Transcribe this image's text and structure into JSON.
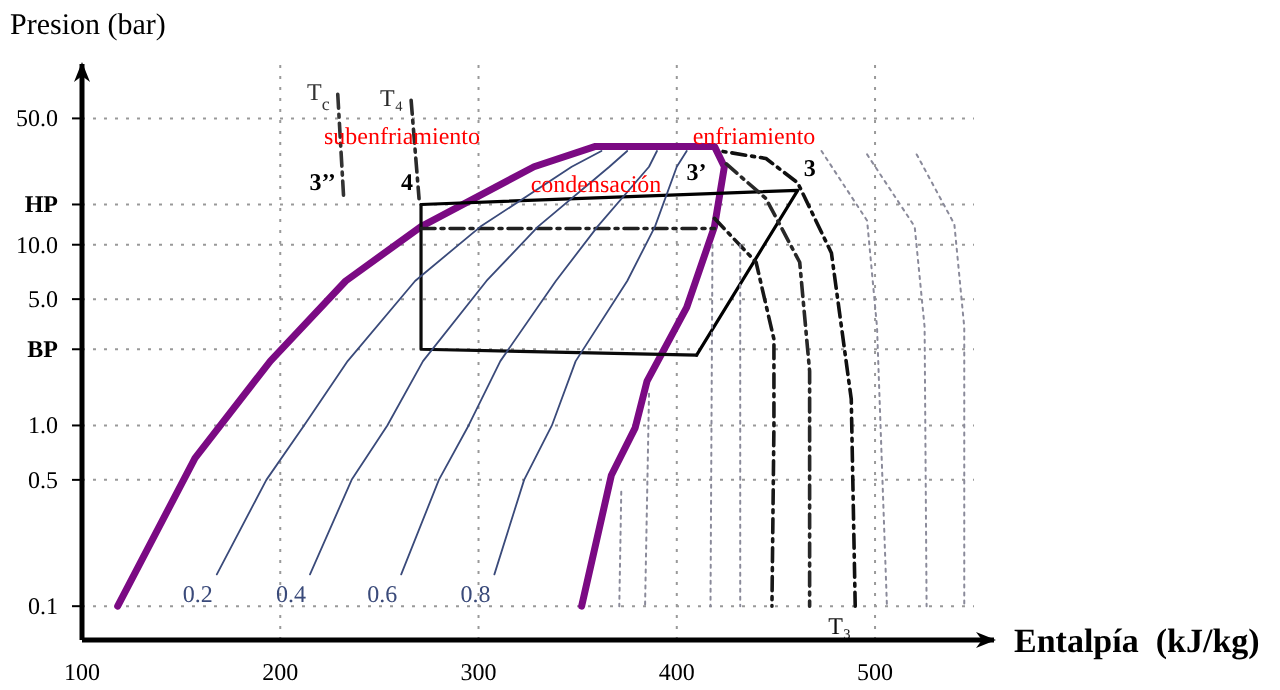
{
  "chart_data": {
    "type": "line",
    "xlabel": "Entalpía  (kJ/kg)",
    "ylabel": "Presion (bar)",
    "xlim": [
      100,
      560
    ],
    "xticks": [
      100,
      200,
      300,
      400,
      500
    ],
    "ylim": [
      0.065,
      100
    ],
    "yticks": [
      {
        "value": 50,
        "label": "50.0"
      },
      {
        "value": 16.7,
        "label": "HP"
      },
      {
        "value": 10,
        "label": "10.0"
      },
      {
        "value": 5,
        "label": "5.0"
      },
      {
        "value": 2.64,
        "label": "BP"
      },
      {
        "value": 1,
        "label": "1.0"
      },
      {
        "value": 0.5,
        "label": "0.5"
      },
      {
        "value": 0.1,
        "label": "0.1"
      }
    ],
    "log": "y",
    "grid": true,
    "series": [
      {
        "color": "#7b0a83",
        "x": [
          118,
          157,
          195,
          233,
          271,
          328,
          359,
          419,
          424,
          419,
          405,
          385,
          379,
          367,
          352
        ],
        "values": [
          0.1,
          0.66,
          2.27,
          6.3,
          12.6,
          27,
          35,
          35,
          27,
          12.6,
          4.5,
          1.76,
          0.97,
          0.53,
          0.1
        ]
      },
      {
        "color": "#000000",
        "x": [
          271,
          461,
          410
        ],
        "values": [
          16.7,
          20,
          2.45
        ]
      },
      {
        "color": "#0a0a0a",
        "x": [
          410,
          271,
          271
        ],
        "values": [
          2.45,
          2.64,
          16.7
        ]
      },
      {
        "color": "#202020",
        "line_style": "dashed",
        "x": [
          271,
          419
        ],
        "values": [
          12.3,
          12.3
        ]
      },
      {
        "name": "T₄",
        "color": "#2a2a2a",
        "line_style": "dashed",
        "x": [
          266,
          270
        ],
        "values": [
          63,
          18
        ]
      },
      {
        "name": "T$_{c}$",
        "color": "#333333",
        "line_style": "dashed",
        "x": [
          229,
          232
        ],
        "values": [
          68,
          18
        ]
      },
      {
        "name": "T₃",
        "color": "#101010",
        "line_style": "dashed",
        "x": [
          490,
          488,
          478,
          461,
          445,
          422
        ],
        "values": [
          0.1,
          1.4,
          9,
          22,
          30,
          33
        ]
      },
      {
        "color": "#181818",
        "line_style": "dashed",
        "x": [
          419,
          440,
          449,
          449,
          448
        ],
        "values": [
          14,
          8,
          3,
          1,
          0.1
        ]
      },
      {
        "color": "#282828",
        "line_style": "dashed",
        "x": [
          425,
          445,
          462,
          467,
          467
        ],
        "values": [
          28,
          18,
          8,
          2,
          0.1
        ]
      },
      {
        "name": "0.2",
        "color": "#3a4a7a",
        "x": [
          168,
          193,
          212,
          234,
          268,
          301,
          347,
          362
        ],
        "values": [
          0.15,
          0.5,
          1,
          2.27,
          6.3,
          12.6,
          27,
          33
        ]
      },
      {
        "name": "0.4",
        "color": "#3a4a7a",
        "x": [
          215,
          236,
          254,
          272,
          304,
          330,
          366,
          375
        ],
        "values": [
          0.15,
          0.5,
          1,
          2.27,
          6.3,
          12.6,
          27,
          33
        ]
      },
      {
        "name": "0.6",
        "color": "#3a4a7a",
        "x": [
          261,
          280,
          295,
          311,
          339,
          360,
          386,
          390
        ],
        "values": [
          0.15,
          0.5,
          1,
          2.27,
          6.3,
          12.6,
          27,
          33
        ]
      },
      {
        "name": "0.8",
        "color": "#3a4a7a",
        "x": [
          308,
          323,
          337,
          349,
          375,
          389,
          400,
          405
        ],
        "values": [
          0.15,
          0.5,
          1,
          2.27,
          6.3,
          12.6,
          27,
          33
        ]
      },
      {
        "color": "#8a8a9a",
        "line_style": "dotted",
        "x": [
          473,
          496,
          501,
          506
        ],
        "values": [
          33,
          13.6,
          3.5,
          0.1
        ]
      },
      {
        "color": "#8a8a9a",
        "line_style": "dotted",
        "x": [
          496,
          520,
          525,
          526
        ],
        "values": [
          31.6,
          12.6,
          3.5,
          0.1
        ]
      },
      {
        "color": "#8a8a9a",
        "line_style": "dotted",
        "x": [
          521,
          540,
          545,
          545
        ],
        "values": [
          31.6,
          13,
          3.5,
          0.1
        ]
      },
      {
        "color": "#8a8a9a",
        "line_style": "dotted",
        "x": [
          372,
          371
        ],
        "values": [
          0.43,
          0.1
        ]
      },
      {
        "color": "#8a8a9a",
        "line_style": "dotted",
        "x": [
          386,
          384
        ],
        "values": [
          1.5,
          0.1
        ]
      },
      {
        "color": "#8a8a9a",
        "line_style": "dotted",
        "x": [
          418,
          417
        ],
        "values": [
          10,
          0.1
        ]
      },
      {
        "color": "#8a8a9a",
        "line_style": "dotted",
        "x": [
          432,
          432
        ],
        "values": [
          10,
          0.1
        ]
      }
    ],
    "annotations": [
      "subenfriamiento",
      "condensación",
      "enfriamiento",
      {
        "text": "4",
        "x": 271,
        "y": 16.7
      },
      {
        "text": "3",
        "x": 461,
        "y": 20
      },
      {
        "text": "3’",
        "x": 419,
        "y": 19
      },
      {
        "text": "3’’",
        "x": 232,
        "y": 16.9
      }
    ]
  }
}
